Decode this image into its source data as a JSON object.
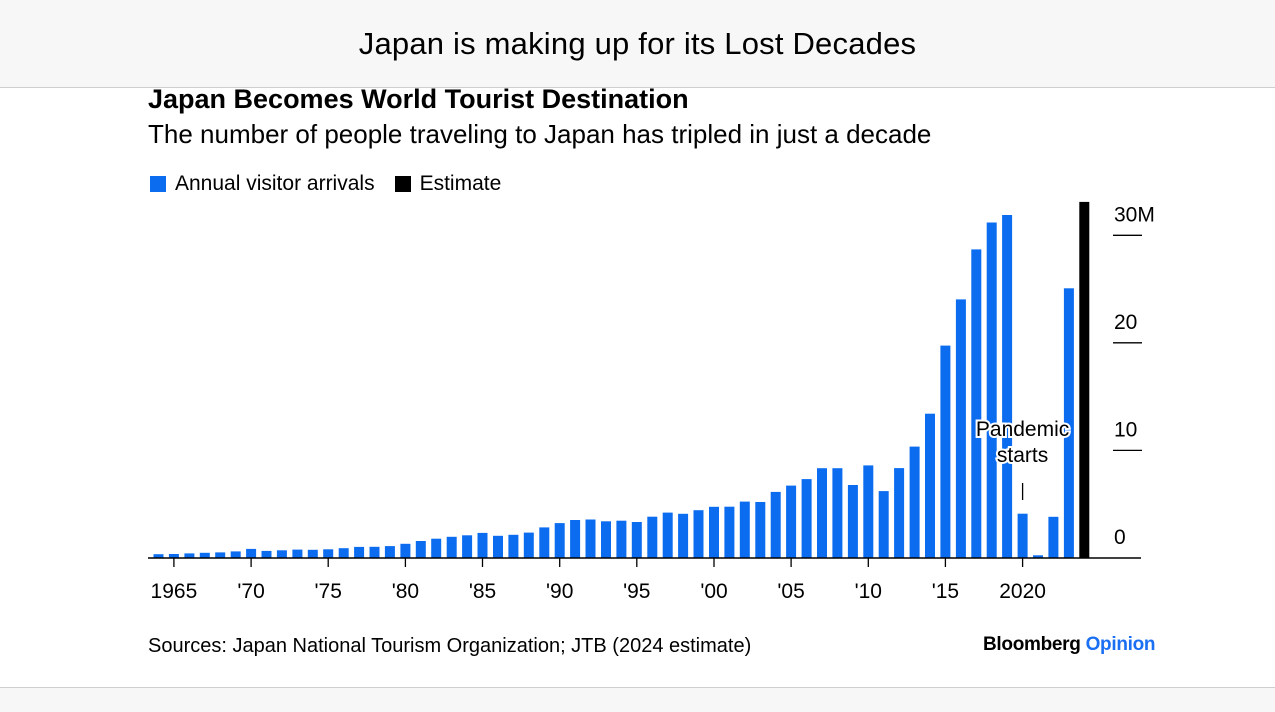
{
  "header": {
    "title": "Japan is making up for its Lost Decades"
  },
  "colors": {
    "visitors": "#0b6cf0",
    "estimate": "#000000"
  },
  "chart_data": {
    "type": "bar",
    "title": "Japan Becomes World Tourist Destination",
    "subtitle": "The number of people traveling to Japan has tripled in just a decade",
    "legend": [
      {
        "label": "Annual visitor arrivals",
        "color": "#0b6cf0"
      },
      {
        "label": "Estimate",
        "color": "#000000"
      }
    ],
    "legend_position": "top-left",
    "y_axis_position": "right",
    "ylim": [
      0,
      33
    ],
    "yticks": [
      {
        "value": 0,
        "label": "0"
      },
      {
        "value": 10,
        "label": "10"
      },
      {
        "value": 20,
        "label": "20"
      },
      {
        "value": 30,
        "label": "30M"
      }
    ],
    "xticks": [
      {
        "year": 1965,
        "label": "1965"
      },
      {
        "year": 1970,
        "label": "'70"
      },
      {
        "year": 1975,
        "label": "'75"
      },
      {
        "year": 1980,
        "label": "'80"
      },
      {
        "year": 1985,
        "label": "'85"
      },
      {
        "year": 1990,
        "label": "'90"
      },
      {
        "year": 1995,
        "label": "'95"
      },
      {
        "year": 2000,
        "label": "'00"
      },
      {
        "year": 2005,
        "label": "'05"
      },
      {
        "year": 2010,
        "label": "'10"
      },
      {
        "year": 2015,
        "label": "'15"
      },
      {
        "year": 2020,
        "label": "2020"
      }
    ],
    "series": [
      {
        "name": "Annual visitor arrivals",
        "x": [
          1964,
          1965,
          1966,
          1967,
          1968,
          1969,
          1970,
          1971,
          1972,
          1973,
          1974,
          1975,
          1976,
          1977,
          1978,
          1979,
          1980,
          1981,
          1982,
          1983,
          1984,
          1985,
          1986,
          1987,
          1988,
          1989,
          1990,
          1991,
          1992,
          1993,
          1994,
          1995,
          1996,
          1997,
          1998,
          1999,
          2000,
          2001,
          2002,
          2003,
          2004,
          2005,
          2006,
          2007,
          2008,
          2009,
          2010,
          2011,
          2012,
          2013,
          2014,
          2015,
          2016,
          2017,
          2018,
          2019,
          2020,
          2021,
          2022,
          2023
        ],
        "values": [
          0.35,
          0.37,
          0.43,
          0.48,
          0.52,
          0.61,
          0.85,
          0.66,
          0.72,
          0.78,
          0.76,
          0.81,
          0.91,
          1.03,
          1.04,
          1.11,
          1.32,
          1.58,
          1.79,
          1.97,
          2.11,
          2.33,
          2.06,
          2.16,
          2.36,
          2.84,
          3.24,
          3.53,
          3.58,
          3.41,
          3.47,
          3.35,
          3.84,
          4.22,
          4.11,
          4.44,
          4.76,
          4.77,
          5.24,
          5.21,
          6.14,
          6.73,
          7.33,
          8.35,
          8.35,
          6.79,
          8.61,
          6.22,
          8.36,
          10.36,
          13.41,
          19.74,
          24.04,
          28.69,
          31.19,
          31.88,
          4.12,
          0.25,
          3.83,
          25.07
        ]
      },
      {
        "name": "Estimate",
        "x": [
          2024
        ],
        "values": [
          33.1
        ]
      }
    ],
    "annotations": [
      {
        "text_line1": "Pandemic",
        "text_line2": "starts",
        "year": 2020
      }
    ]
  },
  "footer": {
    "source": "Sources: Japan National Tourism Organization; JTB (2024 estimate)",
    "brand_main": "Bloomberg",
    "brand_accent": "Opinion"
  }
}
